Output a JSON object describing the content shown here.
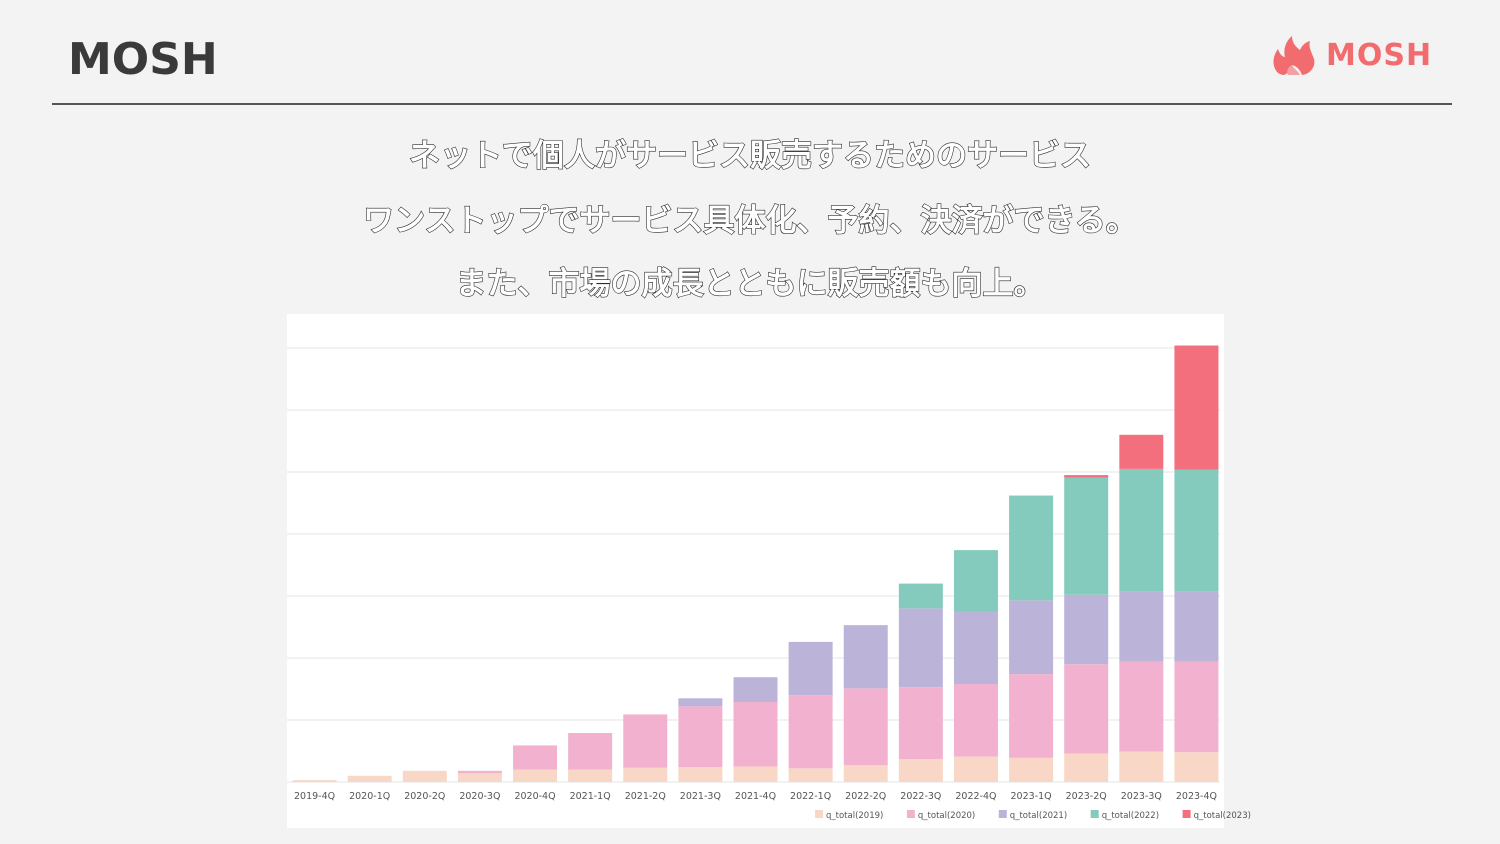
{
  "header": {
    "title": "MOSH",
    "logo_text": "MOSH",
    "logo_icon": "flame-icon"
  },
  "headlines": [
    "ネットで個人がサービス販売するためのサービス",
    "ワンストップでサービス具体化、予約、決済ができる。",
    "また、市場の成長とともに販売額も向上。"
  ],
  "colors": {
    "background": "#f3f3f3",
    "accent": "#f26b6f",
    "series": [
      "#f9d7c7",
      "#f2b2cf",
      "#bcb4d8",
      "#85cbbd",
      "#f36f7d"
    ]
  },
  "chart_data": {
    "type": "bar",
    "stacked": true,
    "categories": [
      "2019-4Q",
      "2020-1Q",
      "2020-2Q",
      "2020-3Q",
      "2020-4Q",
      "2021-1Q",
      "2021-2Q",
      "2021-3Q",
      "2021-4Q",
      "2022-1Q",
      "2022-2Q",
      "2022-3Q",
      "2022-4Q",
      "2023-1Q",
      "2023-2Q",
      "2023-3Q",
      "2023-4Q"
    ],
    "series": [
      {
        "name": "q_total(2019)",
        "values": [
          0.3,
          1.0,
          1.8,
          1.4,
          2.0,
          2.0,
          2.3,
          2.4,
          2.5,
          2.2,
          2.7,
          3.7,
          4.1,
          3.9,
          4.6,
          4.9,
          4.8
        ]
      },
      {
        "name": "q_total(2020)",
        "values": [
          0,
          0,
          0,
          0.4,
          3.9,
          5.9,
          8.6,
          9.8,
          10.4,
          11.8,
          12.4,
          11.6,
          11.7,
          13.5,
          14.4,
          14.5,
          14.6
        ]
      },
      {
        "name": "q_total(2021)",
        "values": [
          0,
          0,
          0,
          0,
          0,
          0,
          0,
          1.3,
          4.0,
          8.6,
          10.2,
          12.7,
          11.7,
          11.9,
          11.2,
          11.3,
          11.3
        ]
      },
      {
        "name": "q_total(2022)",
        "values": [
          0,
          0,
          0,
          0,
          0,
          0,
          0,
          0,
          0,
          0,
          0,
          4.0,
          9.9,
          16.9,
          18.9,
          19.8,
          19.7
        ]
      },
      {
        "name": "q_total(2023)",
        "values": [
          0,
          0,
          0,
          0,
          0,
          0,
          0,
          0,
          0,
          0,
          0,
          0,
          0,
          0,
          0.4,
          5.5,
          20.0
        ]
      }
    ],
    "ylim": [
      0,
      70
    ],
    "grid": true,
    "legend": "bottom-right",
    "title": "",
    "xlabel": "",
    "ylabel": ""
  }
}
